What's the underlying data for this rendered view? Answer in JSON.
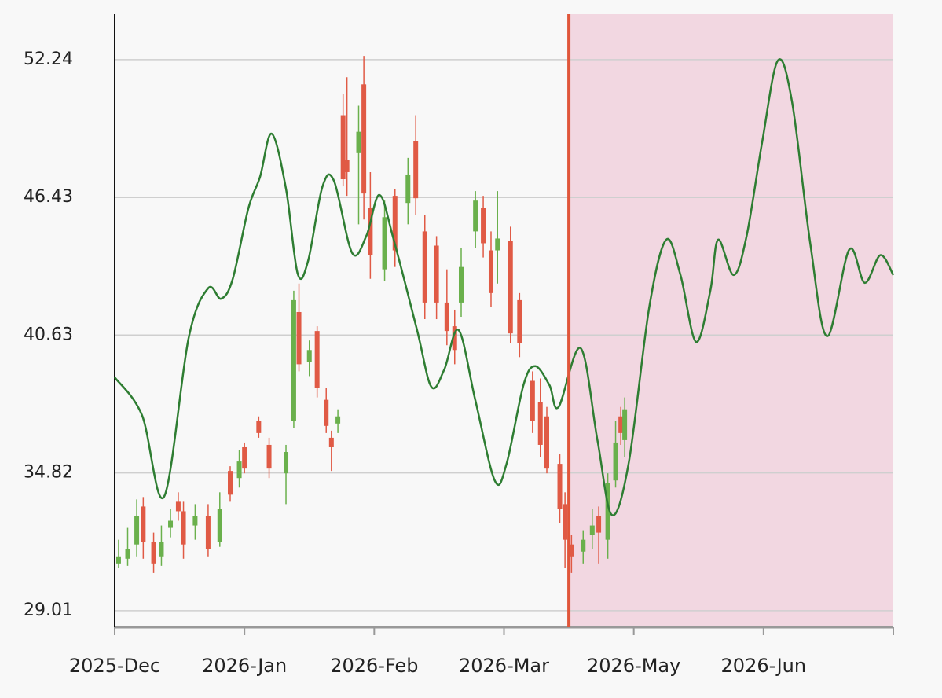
{
  "chart_data": {
    "type": "candlestick",
    "ylim": [
      28.31,
      54.16
    ],
    "yticks": [
      29.01,
      34.82,
      40.63,
      46.43,
      52.24
    ],
    "xlim": [
      0,
      6
    ],
    "xticks": [
      {
        "value": 0,
        "label": "2025-Dec"
      },
      {
        "value": 1,
        "label": "2026-Jan"
      },
      {
        "value": 2,
        "label": "2026-Feb"
      },
      {
        "value": 3,
        "label": "2026-Mar"
      },
      {
        "value": 4,
        "label": "2026-May"
      },
      {
        "value": 5,
        "label": "2026-Jun"
      }
    ],
    "grid": true,
    "forecast_start": 3.5,
    "forecast_color": "#f2d7e1",
    "marker_color": "#e0563a",
    "up_color": "#6ab04c",
    "down_color": "#e05a45",
    "candles": {
      "x": [
        0.03,
        0.1,
        0.17,
        0.22,
        0.3,
        0.36,
        0.43,
        0.49,
        0.53,
        0.62,
        0.72,
        0.81,
        0.89,
        0.96,
        1.0,
        1.11,
        1.19,
        1.32,
        1.38,
        1.42,
        1.5,
        1.56,
        1.63,
        1.67,
        1.72,
        1.76,
        1.79,
        1.88,
        1.92,
        1.97,
        2.08,
        2.16,
        2.26,
        2.32,
        2.39,
        2.48,
        2.56,
        2.62,
        2.67,
        2.78,
        2.84,
        2.9,
        2.95,
        3.05,
        3.12,
        3.22,
        3.28,
        3.33,
        3.43,
        3.47,
        3.52,
        3.61,
        3.68,
        3.73,
        3.8,
        3.86,
        3.9,
        3.93
      ],
      "open": [
        31.0,
        31.2,
        31.8,
        33.4,
        31.9,
        31.3,
        32.5,
        33.6,
        33.2,
        32.6,
        33.0,
        31.9,
        34.9,
        34.6,
        35.9,
        37.0,
        36.0,
        34.8,
        37.0,
        41.6,
        39.5,
        40.8,
        37.9,
        36.3,
        36.9,
        49.9,
        48.0,
        48.3,
        51.2,
        46.0,
        43.4,
        46.5,
        46.2,
        48.8,
        45.0,
        44.4,
        42.0,
        41.0,
        42.0,
        45.0,
        46.0,
        44.2,
        44.2,
        44.6,
        42.1,
        38.7,
        37.8,
        37.2,
        35.2,
        33.5,
        31.8,
        31.5,
        32.2,
        33.0,
        32.0,
        34.5,
        37.2,
        36.2
      ],
      "high": [
        32.0,
        32.5,
        33.7,
        33.8,
        32.3,
        32.6,
        33.3,
        34.0,
        33.6,
        33.5,
        33.5,
        34.0,
        35.1,
        35.8,
        36.1,
        37.2,
        36.3,
        36.0,
        42.5,
        42.8,
        40.4,
        41.0,
        38.4,
        36.6,
        37.5,
        50.8,
        51.5,
        50.3,
        52.4,
        47.5,
        46.3,
        46.8,
        48.1,
        49.9,
        45.7,
        44.8,
        43.4,
        41.7,
        44.3,
        46.7,
        46.5,
        45.0,
        46.7,
        45.2,
        42.4,
        39.1,
        38.8,
        37.6,
        35.6,
        34.0,
        32.2,
        32.4,
        33.3,
        33.4,
        34.8,
        37.0,
        37.6,
        38.0
      ],
      "low": [
        30.8,
        30.9,
        31.3,
        31.2,
        30.6,
        30.9,
        32.1,
        32.8,
        31.2,
        32.0,
        31.3,
        31.7,
        33.6,
        34.2,
        34.8,
        36.3,
        34.6,
        33.5,
        36.7,
        39.1,
        38.9,
        38.0,
        36.5,
        34.9,
        36.5,
        46.9,
        46.5,
        45.3,
        45.5,
        43.0,
        42.9,
        43.5,
        45.3,
        45.7,
        41.3,
        41.3,
        40.2,
        39.4,
        41.4,
        44.3,
        43.9,
        41.8,
        42.8,
        40.3,
        39.7,
        36.5,
        35.5,
        34.8,
        32.7,
        30.8,
        30.6,
        31.0,
        31.6,
        31.0,
        31.2,
        34.2,
        36.0,
        35.5
      ],
      "close": [
        31.3,
        31.6,
        33.0,
        31.9,
        31.0,
        31.9,
        32.8,
        33.2,
        31.8,
        33.0,
        31.6,
        33.3,
        33.9,
        35.3,
        35.0,
        36.5,
        35.0,
        35.7,
        42.1,
        39.4,
        40.0,
        38.4,
        36.8,
        35.9,
        37.2,
        47.2,
        47.5,
        49.2,
        46.6,
        44.0,
        45.6,
        44.2,
        47.4,
        46.4,
        42.0,
        42.0,
        40.8,
        40.0,
        43.5,
        46.3,
        44.5,
        42.4,
        44.7,
        40.7,
        40.3,
        37.0,
        36.0,
        35.0,
        33.3,
        32.0,
        31.3,
        32.0,
        32.6,
        32.3,
        34.4,
        36.1,
        36.5,
        37.5
      ]
    },
    "line": {
      "color": "#2e7d32",
      "x": [
        0,
        0.21,
        0.38,
        0.57,
        0.72,
        0.82,
        0.91,
        1.03,
        1.12,
        1.21,
        1.32,
        1.41,
        1.49,
        1.6,
        1.69,
        1.83,
        1.94,
        2.04,
        2.15,
        2.33,
        2.44,
        2.54,
        2.65,
        2.78,
        2.93,
        3.02,
        3.15,
        3.24,
        3.35,
        3.42,
        3.59,
        3.72,
        3.83,
        3.96,
        4.12,
        4.25,
        4.36,
        4.48,
        4.59,
        4.65,
        4.77,
        4.87,
        4.99,
        5.11,
        5.22,
        5.36,
        5.49,
        5.66,
        5.78,
        5.9,
        6.0
      ],
      "values": [
        38.85,
        37.26,
        33.81,
        40.51,
        42.6,
        42.16,
        43.0,
        45.97,
        47.3,
        49.12,
        46.8,
        43.22,
        43.75,
        46.87,
        47.13,
        44.09,
        44.82,
        46.54,
        44.65,
        40.84,
        38.45,
        39.18,
        40.84,
        37.86,
        34.48,
        35.21,
        38.52,
        39.32,
        38.52,
        37.59,
        40.08,
        36.2,
        33.05,
        35.21,
        41.83,
        44.65,
        43.16,
        40.34,
        42.5,
        44.65,
        43.16,
        44.82,
        48.79,
        52.2,
        50.45,
        44.49,
        40.58,
        44.23,
        42.83,
        44.0,
        43.16
      ]
    }
  }
}
